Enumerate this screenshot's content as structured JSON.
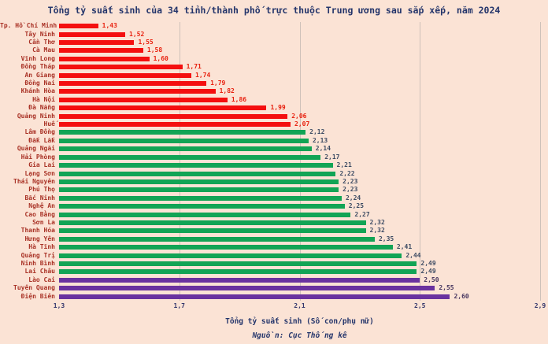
{
  "chart_data": {
    "type": "bar",
    "orientation": "horizontal",
    "title": "Tổng tỷ suất sinh của 34 tỉnh/thành phố trực thuộc Trung ương sau sắp xếp, năm 2024",
    "xlabel": "Tổng tỷ suất sinh (Số con/phụ nữ)",
    "source": "Nguồn: Cục Thống kê",
    "xlim": [
      1.3,
      2.9
    ],
    "xtick_values": [
      1.3,
      1.7,
      2.1,
      2.5,
      2.9
    ],
    "xtick_labels": [
      "1,3",
      "1,7",
      "2,1",
      "2,5",
      "2,9"
    ],
    "grid": true,
    "legend": "none",
    "categories": [
      "Tp. Hồ Chí Minh",
      "Tây Ninh",
      "Cần Thơ",
      "Cà Mau",
      "Vĩnh Long",
      "Đồng Tháp",
      "An Giang",
      "Đồng Nai",
      "Khánh Hòa",
      "Hà Nội",
      "Đà Nẵng",
      "Quảng Ninh",
      "Huế",
      "Lâm Đồng",
      "Đắk Lắk",
      "Quảng Ngãi",
      "Hải Phòng",
      "Gia Lai",
      "Lạng Sơn",
      "Thái Nguyên",
      "Phú Thọ",
      "Bắc Ninh",
      "Nghệ An",
      "Cao Bằng",
      "Sơn La",
      "Thanh Hóa",
      "Hưng Yên",
      "Hà Tĩnh",
      "Quảng Trị",
      "Ninh Bình",
      "Lai Châu",
      "Lào Cai",
      "Tuyên Quang",
      "Điện Biên"
    ],
    "values": [
      1.43,
      1.52,
      1.55,
      1.58,
      1.6,
      1.71,
      1.74,
      1.79,
      1.82,
      1.86,
      1.99,
      2.06,
      2.07,
      2.12,
      2.13,
      2.14,
      2.17,
      2.21,
      2.22,
      2.23,
      2.23,
      2.24,
      2.25,
      2.27,
      2.32,
      2.32,
      2.35,
      2.41,
      2.44,
      2.49,
      2.49,
      2.5,
      2.55,
      2.6
    ],
    "value_labels": [
      "1,43",
      "1,52",
      "1,55",
      "1,58",
      "1,60",
      "1,71",
      "1,74",
      "1,79",
      "1,82",
      "1,86",
      "1,99",
      "2,06",
      "2,07",
      "2,12",
      "2,13",
      "2,14",
      "2,17",
      "2,21",
      "2,22",
      "2,23",
      "2,23",
      "2,24",
      "2,25",
      "2,27",
      "2,32",
      "2,32",
      "2,35",
      "2,41",
      "2,44",
      "2,49",
      "2,49",
      "2,50",
      "2,55",
      "2,60"
    ],
    "groups": [
      "red",
      "red",
      "red",
      "red",
      "red",
      "red",
      "red",
      "red",
      "red",
      "red",
      "red",
      "red",
      "red",
      "green",
      "green",
      "green",
      "green",
      "green",
      "green",
      "green",
      "green",
      "green",
      "green",
      "green",
      "green",
      "green",
      "green",
      "green",
      "green",
      "green",
      "green",
      "purple",
      "purple",
      "purple"
    ],
    "bar_colors": {
      "red": "#f40f0f",
      "green": "#12a455",
      "purple": "#6a329f"
    },
    "value_text_colors": {
      "red": "#e8210f",
      "green": "#3d4b63",
      "purple": "#46355f"
    },
    "category_label_color": "#a93226",
    "background_color": "#fbe3d5",
    "title_color": "#24356b"
  }
}
